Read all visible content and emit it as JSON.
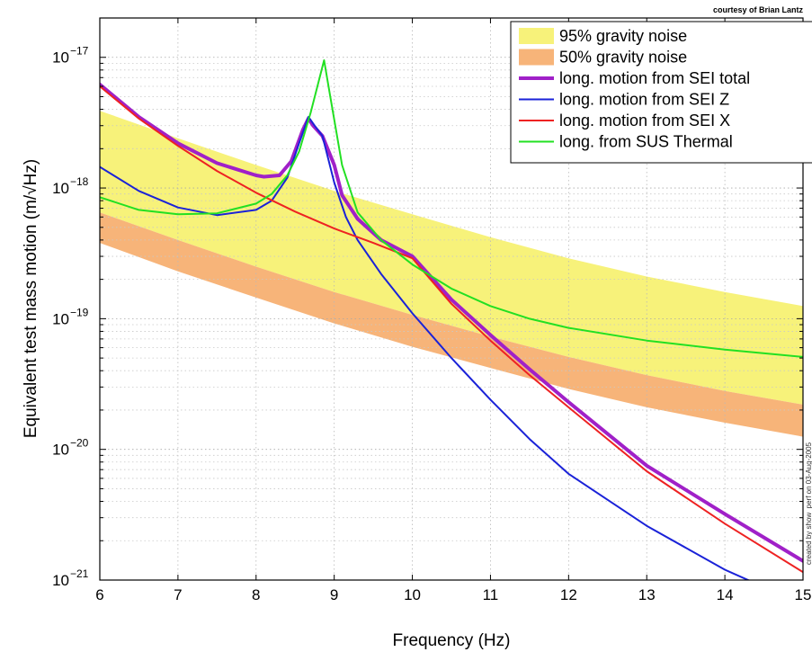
{
  "credit": "courtesy of Brian Lantz",
  "side_note": "created by show_perf on 03-Aug-2005",
  "chart_data": {
    "type": "line",
    "xlabel": "Frequency (Hz)",
    "ylabel": "Equivalent test mass motion (m/√Hz)",
    "xlim": [
      6,
      15
    ],
    "ylim": [
      1e-21,
      2e-17
    ],
    "yscale": "log",
    "grid": true,
    "legend_position": "top-right",
    "x_ticks": [
      "6",
      "7",
      "8",
      "9",
      "10",
      "11",
      "12",
      "13",
      "14",
      "15"
    ],
    "y_ticks": [
      {
        "base": "10",
        "exp": "−21",
        "value": 1e-21
      },
      {
        "base": "10",
        "exp": "−20",
        "value": 1e-20
      },
      {
        "base": "10",
        "exp": "−19",
        "value": 1e-19
      },
      {
        "base": "10",
        "exp": "−18",
        "value": 1e-18
      },
      {
        "base": "10",
        "exp": "−17",
        "value": 1e-17
      }
    ],
    "bands": [
      {
        "name": "95% gravity noise",
        "color": "#f7f27a",
        "x": [
          6,
          7,
          8,
          9,
          10,
          11,
          12,
          13,
          14,
          15
        ],
        "upper": [
          3.9e-18,
          2.4e-18,
          1.5e-18,
          9.5e-19,
          6.3e-19,
          4.2e-19,
          2.9e-19,
          2.1e-19,
          1.6e-19,
          1.25e-19
        ],
        "lower": [
          6.5e-19,
          4e-19,
          2.5e-19,
          1.6e-19,
          1.07e-19,
          7.3e-20,
          5.1e-20,
          3.7e-20,
          2.8e-20,
          2.2e-20
        ]
      },
      {
        "name": "50% gravity noise",
        "color": "#f7b479",
        "x": [
          6,
          7,
          8,
          9,
          10,
          11,
          12,
          13,
          14,
          15
        ],
        "upper": [
          6.5e-19,
          4e-19,
          2.5e-19,
          1.6e-19,
          1.07e-19,
          7.3e-20,
          5.1e-20,
          3.7e-20,
          2.8e-20,
          2.2e-20
        ],
        "lower": [
          3.8e-19,
          2.3e-19,
          1.45e-19,
          9.2e-20,
          6.1e-20,
          4.2e-20,
          2.9e-20,
          2.1e-20,
          1.6e-20,
          1.25e-20
        ]
      }
    ],
    "series": [
      {
        "name": "long. motion from SEI total",
        "color": "#a020c8",
        "width": 4,
        "x": [
          6,
          6.5,
          7,
          7.5,
          8,
          8.1,
          8.3,
          8.45,
          8.6,
          8.67,
          8.73,
          8.85,
          9.0,
          9.1,
          9.3,
          9.6,
          10.0,
          10.5,
          11,
          11.5,
          12,
          13,
          14,
          15
        ],
        "y": [
          6.2e-18,
          3.5e-18,
          2.2e-18,
          1.55e-18,
          1.25e-18,
          1.22e-18,
          1.25e-18,
          1.6e-18,
          2.8e-18,
          3.4e-18,
          3e-18,
          2.5e-18,
          1.5e-18,
          8.8e-19,
          5.8e-19,
          4e-19,
          3e-19,
          1.4e-19,
          7.5e-20,
          4.1e-20,
          2.3e-20,
          7.5e-21,
          3.2e-21,
          1.4e-21
        ]
      },
      {
        "name": "long. motion from SEI Z",
        "color": "#1a22d8",
        "width": 2,
        "x": [
          6,
          6.5,
          7,
          7.5,
          8,
          8.2,
          8.4,
          8.55,
          8.67,
          8.75,
          8.85,
          9.0,
          9.15,
          9.3,
          9.6,
          10,
          10.5,
          11,
          11.5,
          12,
          13,
          14,
          15
        ],
        "y": [
          1.45e-18,
          9.5e-19,
          7.1e-19,
          6.2e-19,
          6.8e-19,
          8e-19,
          1.2e-18,
          2.2e-18,
          3.5e-18,
          3e-18,
          2.5e-18,
          1.1e-18,
          6e-19,
          4e-19,
          2.2e-19,
          1.1e-19,
          5e-20,
          2.4e-20,
          1.2e-20,
          6.5e-21,
          2.6e-21,
          1.2e-21,
          6.5e-22
        ]
      },
      {
        "name": "long. motion from SEI X",
        "color": "#ee2222",
        "width": 2,
        "x": [
          6,
          6.5,
          7,
          7.5,
          8,
          8.5,
          9,
          9.5,
          10,
          10.5,
          11,
          11.5,
          12,
          13,
          14,
          15
        ],
        "y": [
          6e-18,
          3.4e-18,
          2.1e-18,
          1.35e-18,
          9.2e-19,
          6.6e-19,
          4.9e-19,
          3.8e-19,
          2.9e-19,
          1.3e-19,
          6.8e-20,
          3.7e-20,
          2.1e-20,
          6.8e-21,
          2.7e-21,
          1.15e-21
        ]
      },
      {
        "name": "long. from SUS Thermal",
        "color": "#22e022",
        "width": 2,
        "x": [
          6,
          6.5,
          7,
          7.5,
          8,
          8.2,
          8.4,
          8.55,
          8.7,
          8.8,
          8.87,
          8.95,
          9.1,
          9.3,
          9.6,
          10,
          10.5,
          11,
          11.5,
          12,
          13,
          14,
          15
        ],
        "y": [
          8.5e-19,
          6.8e-19,
          6.3e-19,
          6.4e-19,
          7.6e-19,
          9e-19,
          1.25e-18,
          1.9e-18,
          3.8e-18,
          6.5e-18,
          9.5e-18,
          5e-18,
          1.5e-18,
          6.5e-19,
          4e-19,
          2.6e-19,
          1.7e-19,
          1.25e-19,
          1e-19,
          8.5e-20,
          6.8e-20,
          5.8e-20,
          5.1e-20
        ]
      }
    ]
  }
}
